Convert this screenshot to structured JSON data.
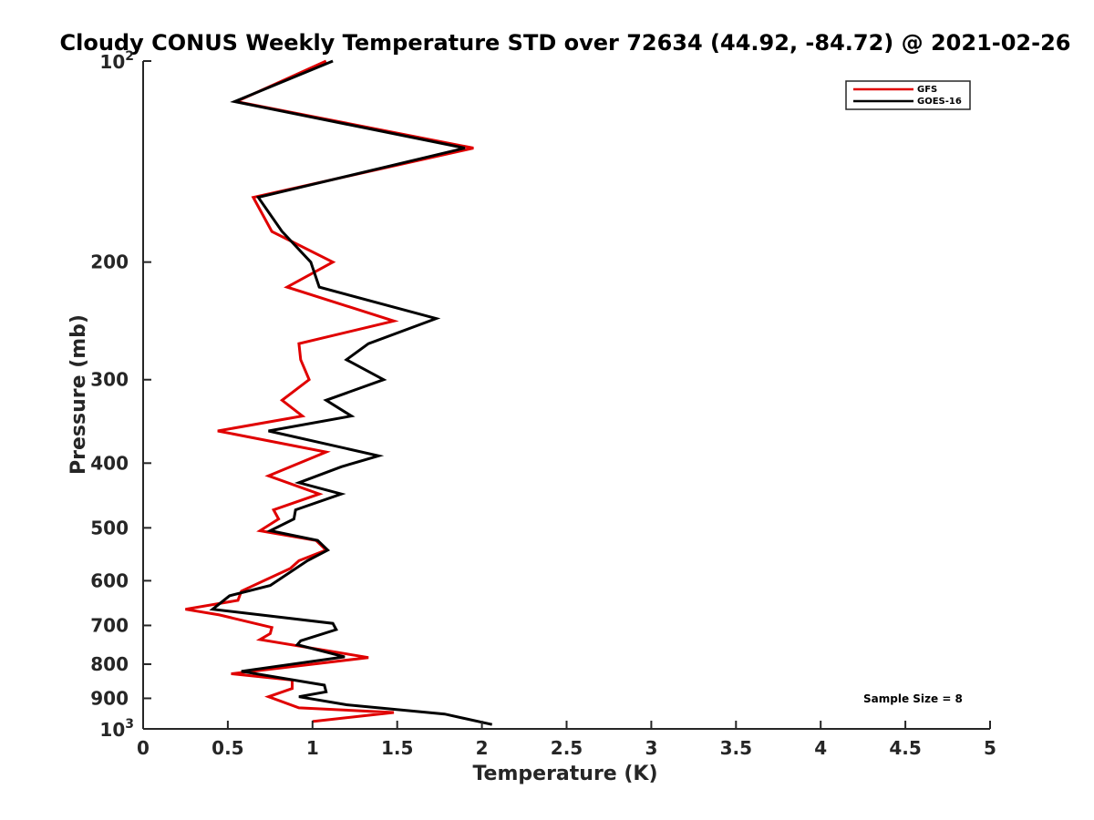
{
  "chart_data": {
    "type": "line",
    "title": "Cloudy CONUS Weekly Temperature STD over 72634 (44.92, -84.72) @ 2021-02-26",
    "xlabel": "Temperature (K)",
    "ylabel": "Pressure (mb)",
    "xlim": [
      0,
      5
    ],
    "ylim": [
      100,
      1000
    ],
    "y_scale": "log",
    "y_reversed": true,
    "x_ticks": [
      0,
      0.5,
      1,
      1.5,
      2,
      2.5,
      3,
      3.5,
      4,
      4.5,
      5
    ],
    "x_tick_labels": [
      "0",
      "0.5",
      "1",
      "1.5",
      "2",
      "2.5",
      "3",
      "3.5",
      "4",
      "4.5",
      "5"
    ],
    "y_ticks": [
      {
        "value": 100,
        "base": "10",
        "exp": "2"
      },
      {
        "value": 200,
        "label": "200"
      },
      {
        "value": 300,
        "label": "300"
      },
      {
        "value": 400,
        "label": "400"
      },
      {
        "value": 500,
        "label": "500"
      },
      {
        "value": 600,
        "label": "600"
      },
      {
        "value": 700,
        "label": "700"
      },
      {
        "value": 800,
        "label": "800"
      },
      {
        "value": 900,
        "label": "900"
      },
      {
        "value": 1000,
        "base": "10",
        "exp": "3"
      }
    ],
    "grid": false,
    "legend_position": "top-right",
    "annotation": "Sample Size = 8",
    "series": [
      {
        "name": "GFS",
        "color": "#e00000",
        "points": [
          [
            1.08,
            100
          ],
          [
            0.55,
            115
          ],
          [
            1.95,
            135
          ],
          [
            0.65,
            160
          ],
          [
            0.76,
            180
          ],
          [
            1.12,
            200
          ],
          [
            0.85,
            218
          ],
          [
            1.48,
            245
          ],
          [
            0.92,
            265
          ],
          [
            0.93,
            280
          ],
          [
            0.98,
            300
          ],
          [
            0.82,
            322
          ],
          [
            0.94,
            340
          ],
          [
            0.44,
            358
          ],
          [
            1.08,
            385
          ],
          [
            0.74,
            418
          ],
          [
            1.04,
            445
          ],
          [
            0.77,
            470
          ],
          [
            0.8,
            485
          ],
          [
            0.69,
            505
          ],
          [
            1.02,
            522
          ],
          [
            1.08,
            540
          ],
          [
            0.92,
            560
          ],
          [
            0.87,
            575
          ],
          [
            0.58,
            622
          ],
          [
            0.56,
            642
          ],
          [
            0.25,
            662
          ],
          [
            0.45,
            675
          ],
          [
            0.76,
            705
          ],
          [
            0.75,
            720
          ],
          [
            0.69,
            735
          ],
          [
            1.33,
            782
          ],
          [
            0.52,
            827
          ],
          [
            0.88,
            845
          ],
          [
            0.88,
            870
          ],
          [
            0.74,
            895
          ],
          [
            0.92,
            930
          ],
          [
            1.48,
            945
          ],
          [
            1.0,
            975
          ]
        ]
      },
      {
        "name": "GOES-16",
        "color": "#000000",
        "points": [
          [
            1.12,
            100
          ],
          [
            0.54,
            115
          ],
          [
            1.9,
            135
          ],
          [
            0.68,
            160
          ],
          [
            0.82,
            180
          ],
          [
            0.99,
            200
          ],
          [
            1.04,
            218
          ],
          [
            1.73,
            243
          ],
          [
            1.33,
            265
          ],
          [
            1.2,
            280
          ],
          [
            1.42,
            300
          ],
          [
            1.08,
            322
          ],
          [
            1.23,
            340
          ],
          [
            0.74,
            358
          ],
          [
            1.39,
            390
          ],
          [
            1.17,
            405
          ],
          [
            0.92,
            428
          ],
          [
            1.17,
            445
          ],
          [
            0.9,
            470
          ],
          [
            0.89,
            485
          ],
          [
            0.75,
            505
          ],
          [
            1.03,
            522
          ],
          [
            1.09,
            540
          ],
          [
            0.97,
            560
          ],
          [
            0.75,
            610
          ],
          [
            0.51,
            632
          ],
          [
            0.41,
            662
          ],
          [
            1.12,
            695
          ],
          [
            1.14,
            710
          ],
          [
            0.93,
            738
          ],
          [
            0.91,
            748
          ],
          [
            1.19,
            780
          ],
          [
            0.58,
            820
          ],
          [
            1.07,
            860
          ],
          [
            1.08,
            880
          ],
          [
            0.92,
            895
          ],
          [
            1.2,
            920
          ],
          [
            1.78,
            950
          ],
          [
            2.06,
            985
          ]
        ]
      }
    ]
  }
}
